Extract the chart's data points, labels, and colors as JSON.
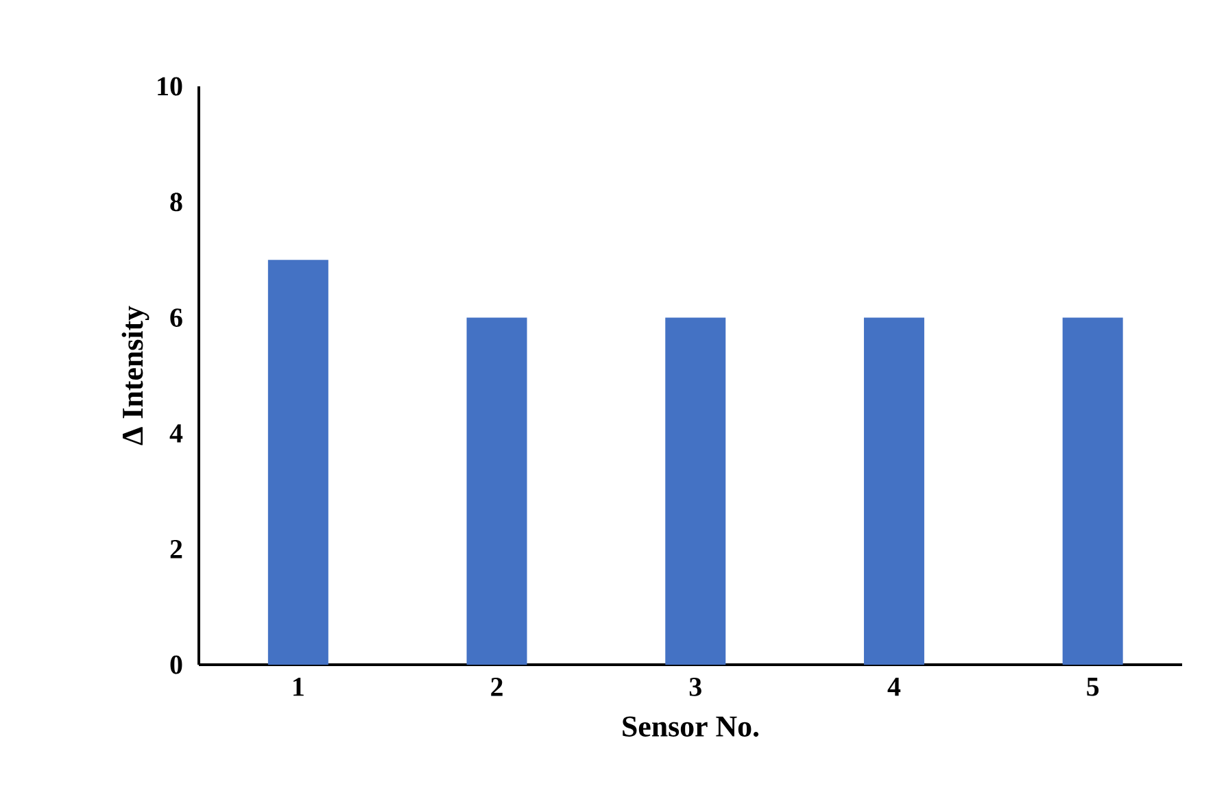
{
  "chart_data": {
    "type": "bar",
    "categories": [
      "1",
      "2",
      "3",
      "4",
      "5"
    ],
    "values": [
      7,
      6,
      6,
      6,
      6
    ],
    "color": "#4472c4",
    "xlabel": "Sensor No.",
    "ylabel": "Δ Intensity",
    "ylim": [
      0,
      10
    ],
    "yticks": [
      0,
      2,
      4,
      6,
      8,
      10
    ],
    "grid": false
  }
}
